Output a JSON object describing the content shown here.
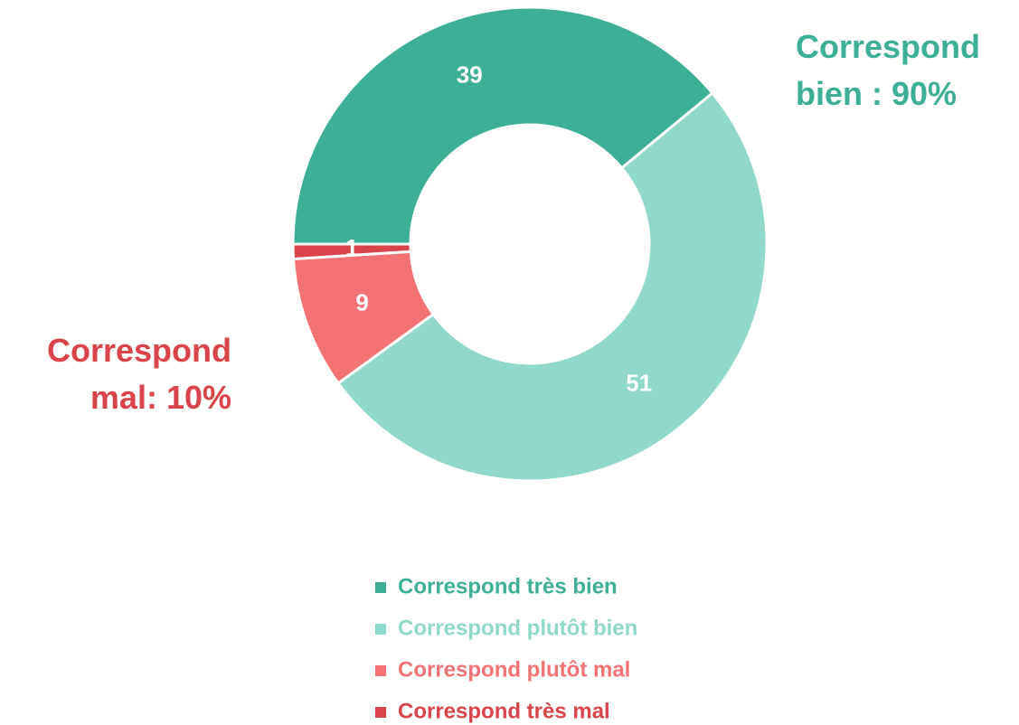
{
  "chart_data": {
    "type": "donut",
    "categories": [
      "Correspond très bien",
      "Correspond plutôt bien",
      "Correspond plutôt mal",
      "Correspond très mal"
    ],
    "values": [
      39,
      51,
      9,
      1
    ],
    "colors": [
      "#3daf96",
      "#90d8c9",
      "#f37374",
      "#d9444b"
    ],
    "annotations": [
      {
        "text": "Correspond bien : 90%",
        "color": "#3daf96"
      },
      {
        "text": "Correspond mal: 10%",
        "color": "#d9444b"
      }
    ],
    "legend": "bottom"
  }
}
